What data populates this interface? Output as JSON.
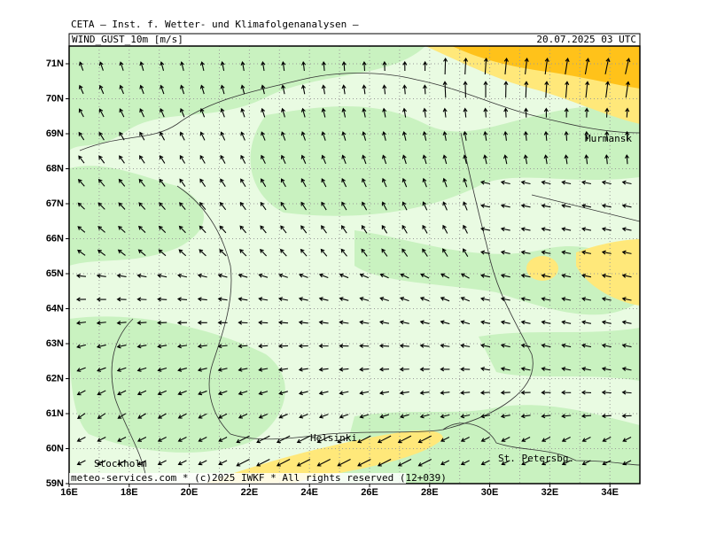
{
  "header": {
    "title": "CETA — Inst. f. Wetter- und Klimafolgenanalysen —",
    "variable": "WIND_GUST_10m [m/s]",
    "time": "20.07.2025 03 UTC"
  },
  "map": {
    "lat_ticks": [
      {
        "value": 71,
        "label": "71N"
      },
      {
        "value": 70,
        "label": "70N"
      },
      {
        "value": 69,
        "label": "69N"
      },
      {
        "value": 68,
        "label": "68N"
      },
      {
        "value": 67,
        "label": "67N"
      },
      {
        "value": 66,
        "label": "66N"
      },
      {
        "value": 65,
        "label": "65N"
      },
      {
        "value": 64,
        "label": "64N"
      },
      {
        "value": 63,
        "label": "63N"
      },
      {
        "value": 62,
        "label": "62N"
      },
      {
        "value": 61,
        "label": "61N"
      },
      {
        "value": 60,
        "label": "60N"
      },
      {
        "value": 59,
        "label": "59N"
      }
    ],
    "lon_ticks": [
      {
        "value": 16,
        "label": "16E"
      },
      {
        "value": 18,
        "label": "18E"
      },
      {
        "value": 20,
        "label": "20E"
      },
      {
        "value": 22,
        "label": "22E"
      },
      {
        "value": 24,
        "label": "24E"
      },
      {
        "value": 26,
        "label": "26E"
      },
      {
        "value": 28,
        "label": "28E"
      },
      {
        "value": 30,
        "label": "30E"
      },
      {
        "value": 32,
        "label": "32E"
      },
      {
        "value": 34,
        "label": "34E"
      }
    ],
    "places": [
      {
        "name": "Murmansk"
      },
      {
        "name": "Helsinki"
      },
      {
        "name": "Stockholm"
      },
      {
        "name": "St. Petersbg."
      }
    ]
  },
  "footer": {
    "credit": "meteo-services.com * (c)2025 IWKF * All rights reserved (12+039)"
  }
}
